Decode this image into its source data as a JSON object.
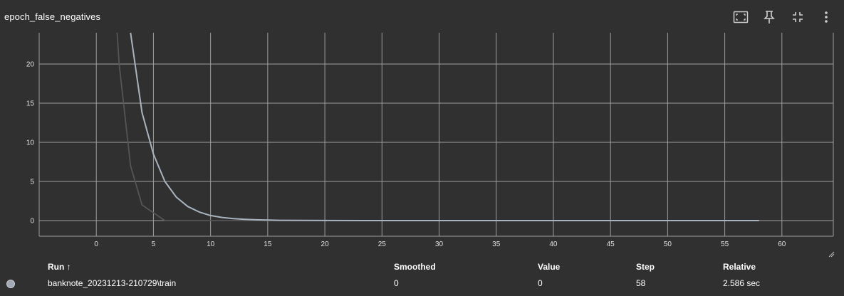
{
  "card": {
    "title": "epoch_false_negatives"
  },
  "toolbar": {
    "icons": [
      "fit-domain-icon",
      "pin-icon",
      "collapse-icon",
      "more-vertical-icon"
    ]
  },
  "colors": {
    "background": "#303030",
    "grid": "#9e9e9e",
    "smoothed_line": "#a9b3bf",
    "raw_line": "#555555",
    "run_dot": "#a2a9b4"
  },
  "chart_data": {
    "type": "line",
    "title": "epoch_false_negatives",
    "xlabel": "",
    "ylabel": "",
    "xlim": [
      -5,
      64.5
    ],
    "ylim": [
      -2,
      24
    ],
    "x_ticks": [
      0,
      5,
      10,
      15,
      20,
      25,
      30,
      35,
      40,
      45,
      50,
      55,
      60
    ],
    "y_ticks": [
      0,
      5,
      10,
      15,
      20
    ],
    "grid": true,
    "legend": "none",
    "series": [
      {
        "name": "banknote_20231213-210729\\train",
        "role": "smoothed",
        "color": "#a9b3bf",
        "x": [
          2,
          3,
          4,
          5,
          6,
          7,
          8,
          9,
          10,
          11,
          12,
          13,
          14,
          15,
          16,
          18,
          20,
          25,
          30,
          40,
          50,
          58
        ],
        "y": [
          40,
          24,
          13.8,
          8.5,
          5,
          3,
          1.8,
          1.1,
          0.65,
          0.4,
          0.25,
          0.16,
          0.1,
          0.06,
          0.04,
          0.02,
          0.01,
          0,
          0,
          0,
          0,
          0
        ]
      },
      {
        "name": "banknote_20231213-210729\\train",
        "role": "raw",
        "color": "#555555",
        "x": [
          1,
          2,
          3,
          4,
          5,
          6,
          7,
          8,
          10,
          15,
          20
        ],
        "y": [
          42,
          20,
          7,
          2,
          1,
          0,
          0,
          0,
          0,
          0,
          0
        ]
      }
    ]
  },
  "table": {
    "headers": {
      "run": "Run ↑",
      "smoothed": "Smoothed",
      "value": "Value",
      "step": "Step",
      "relative": "Relative"
    },
    "rows": [
      {
        "run": "banknote_20231213-210729\\train",
        "smoothed": "0",
        "value": "0",
        "step": "58",
        "relative": "2.586 sec"
      }
    ]
  }
}
